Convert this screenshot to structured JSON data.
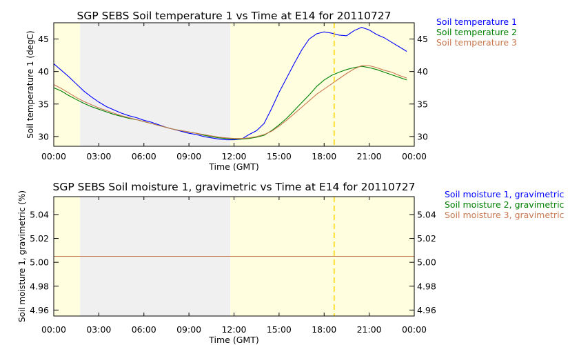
{
  "colors": {
    "series1": "#0000ff",
    "series2": "#008000",
    "series3": "#c87850",
    "night_band": "#ffffe0",
    "missing_band": "#f0f0f0",
    "marker": "#ffd700"
  },
  "chart_data": [
    {
      "type": "line",
      "title": "SGP SEBS Soil temperature 1 vs Time at E14 for 20110727",
      "xlabel": "Time (GMT)",
      "ylabel": "Soil temperature 1 (degC)",
      "xlim": [
        "00:00",
        "24:00"
      ],
      "ylim": [
        28.5,
        47.5
      ],
      "x_ticks": [
        "00:00",
        "03:00",
        "06:00",
        "09:00",
        "12:00",
        "15:00",
        "18:00",
        "21:00",
        "00:00"
      ],
      "y_ticks": [
        30,
        35,
        40,
        45
      ],
      "y_tick_labels": [
        "30",
        "35",
        "40",
        "45"
      ],
      "grid": false,
      "legend": "right",
      "shaded_regions": [
        {
          "start": "00:00",
          "end": "01:45",
          "kind": "night"
        },
        {
          "start": "01:45",
          "end": "11:45",
          "kind": "missing"
        },
        {
          "start": "11:45",
          "end": "24:00",
          "kind": "night"
        }
      ],
      "vertical_markers": [
        "18:40"
      ],
      "x_hours": [
        0,
        0.5,
        1,
        1.5,
        2,
        2.5,
        3,
        3.5,
        4,
        4.5,
        5,
        5.5,
        6,
        6.5,
        7,
        7.5,
        8,
        8.5,
        9,
        9.5,
        10,
        10.5,
        11,
        11.5,
        12,
        12.5,
        13,
        13.5,
        14,
        14.5,
        15,
        15.5,
        16,
        16.5,
        17,
        17.5,
        18,
        18.5,
        19,
        19.5,
        20,
        20.5,
        21,
        21.5,
        22,
        22.5,
        23,
        23.5
      ],
      "series": [
        {
          "name": "Soil temperature 1",
          "values": [
            41.2,
            40.2,
            39.2,
            38.1,
            37.0,
            36.1,
            35.3,
            34.6,
            34.1,
            33.6,
            33.2,
            32.9,
            32.5,
            32.2,
            31.8,
            31.4,
            31.1,
            30.8,
            30.5,
            30.3,
            30.0,
            29.8,
            29.6,
            29.5,
            29.5,
            29.6,
            30.3,
            30.9,
            32.0,
            34.3,
            36.8,
            39.0,
            41.2,
            43.3,
            45.0,
            45.8,
            46.1,
            45.9,
            45.6,
            45.5,
            46.3,
            46.8,
            46.4,
            45.7,
            45.2,
            44.5,
            43.8,
            43.1
          ]
        },
        {
          "name": "Soil temperature 2",
          "values": [
            37.5,
            37.0,
            36.3,
            35.7,
            35.1,
            34.6,
            34.2,
            33.8,
            33.4,
            33.1,
            32.8,
            32.6,
            32.3,
            32.0,
            31.7,
            31.4,
            31.1,
            30.9,
            30.7,
            30.5,
            30.2,
            30.0,
            29.8,
            29.7,
            29.6,
            29.6,
            29.7,
            29.9,
            30.2,
            30.9,
            31.8,
            32.8,
            34.0,
            35.2,
            36.4,
            37.7,
            38.7,
            39.4,
            39.9,
            40.3,
            40.6,
            40.8,
            40.6,
            40.3,
            39.9,
            39.5,
            39.1,
            38.7
          ]
        },
        {
          "name": "Soil temperature 3",
          "values": [
            38.0,
            37.4,
            36.7,
            36.0,
            35.4,
            34.9,
            34.4,
            34.0,
            33.6,
            33.2,
            32.9,
            32.6,
            32.3,
            32.0,
            31.7,
            31.4,
            31.1,
            30.9,
            30.7,
            30.5,
            30.3,
            30.1,
            29.9,
            29.8,
            29.7,
            29.7,
            29.8,
            30.0,
            30.3,
            30.8,
            31.6,
            32.5,
            33.5,
            34.5,
            35.5,
            36.5,
            37.3,
            38.1,
            38.9,
            39.7,
            40.4,
            40.9,
            40.9,
            40.6,
            40.2,
            39.9,
            39.4,
            39.0
          ]
        }
      ]
    },
    {
      "type": "line",
      "title": "SGP SEBS Soil moisture 1, gravimetric vs Time at E14 for 20110727",
      "xlabel": "Time (GMT)",
      "ylabel": "Soil moisture 1, gravimetric (%)",
      "xlim": [
        "00:00",
        "24:00"
      ],
      "ylim": [
        4.955,
        5.055
      ],
      "x_ticks": [
        "00:00",
        "03:00",
        "06:00",
        "09:00",
        "12:00",
        "15:00",
        "18:00",
        "21:00",
        "00:00"
      ],
      "y_ticks": [
        4.96,
        4.98,
        5.0,
        5.02,
        5.04
      ],
      "y_tick_labels": [
        "4.96",
        "4.98",
        "5.00",
        "5.02",
        "5.04"
      ],
      "grid": false,
      "legend": "right",
      "shaded_regions": [
        {
          "start": "00:00",
          "end": "01:45",
          "kind": "night"
        },
        {
          "start": "01:45",
          "end": "11:45",
          "kind": "missing"
        },
        {
          "start": "11:45",
          "end": "24:00",
          "kind": "night"
        }
      ],
      "vertical_markers": [
        "18:40"
      ],
      "x_hours": [
        0,
        24
      ],
      "series": [
        {
          "name": "Soil moisture 1, gravimetric",
          "values": [
            5.005,
            5.005
          ]
        },
        {
          "name": "Soil moisture 2, gravimetric",
          "values": [
            5.005,
            5.005
          ]
        },
        {
          "name": "Soil moisture 3, gravimetric",
          "values": [
            5.005,
            5.005
          ]
        }
      ]
    }
  ]
}
